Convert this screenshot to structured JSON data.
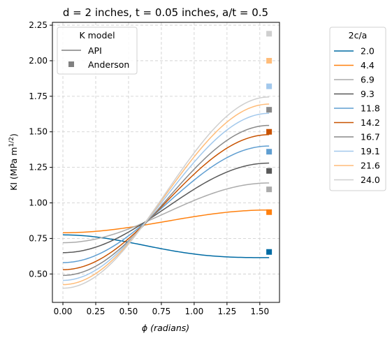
{
  "chart_data": {
    "type": "line",
    "title": "d = 2 inches, t = 0.05 inches, a/t = 0.5",
    "xlabel": "ϕ (radians)",
    "ylabel_main": "KI (MPa m",
    "ylabel_sup": "1/2",
    "ylabel_close": ")",
    "xlim": [
      -0.08,
      1.65
    ],
    "ylim": [
      0.3,
      2.27
    ],
    "xticks": [
      0.0,
      0.25,
      0.5,
      0.75,
      1.0,
      1.25,
      1.5
    ],
    "xtick_labels": [
      "0.00",
      "0.25",
      "0.50",
      "0.75",
      "1.00",
      "1.25",
      "1.50"
    ],
    "yticks": [
      0.5,
      0.75,
      1.0,
      1.25,
      1.5,
      1.75,
      2.0,
      2.25
    ],
    "ytick_labels": [
      "0.50",
      "0.75",
      "1.00",
      "1.25",
      "1.50",
      "1.75",
      "2.00",
      "2.25"
    ],
    "grid": true,
    "model_legend": {
      "title": "K model",
      "placement": "top-left",
      "entries": [
        {
          "label": "API",
          "marker": "line",
          "color": "#808080"
        },
        {
          "label": "Anderson",
          "marker": "square",
          "color": "#808080"
        }
      ]
    },
    "series_legend": {
      "title": "2c/a",
      "placement": "outside-right"
    },
    "series": [
      {
        "name": "2.0",
        "color": "#006ba4",
        "start": 0.775,
        "end": 0.615,
        "anderson": 0.655
      },
      {
        "name": "4.4",
        "color": "#ff800e",
        "start": 0.79,
        "end": 0.95,
        "anderson": 0.935
      },
      {
        "name": "6.9",
        "color": "#ababab",
        "start": 0.72,
        "end": 1.14,
        "anderson": 1.095
      },
      {
        "name": "9.3",
        "color": "#595959",
        "start": 0.65,
        "end": 1.28,
        "anderson": 1.225
      },
      {
        "name": "11.8",
        "color": "#5f9ed1",
        "start": 0.58,
        "end": 1.4,
        "anderson": 1.36
      },
      {
        "name": "14.2",
        "color": "#c85200",
        "start": 0.53,
        "end": 1.48,
        "anderson": 1.5
      },
      {
        "name": "16.7",
        "color": "#898989",
        "start": 0.49,
        "end": 1.545,
        "anderson": 1.655
      },
      {
        "name": "19.1",
        "color": "#a2c8ec",
        "start": 0.455,
        "end": 1.63,
        "anderson": 1.82
      },
      {
        "name": "21.6",
        "color": "#ffbc79",
        "start": 0.425,
        "end": 1.695,
        "anderson": 2.0
      },
      {
        "name": "24.0",
        "color": "#cfcfcf",
        "start": 0.4,
        "end": 1.745,
        "anderson": 2.19
      }
    ]
  }
}
